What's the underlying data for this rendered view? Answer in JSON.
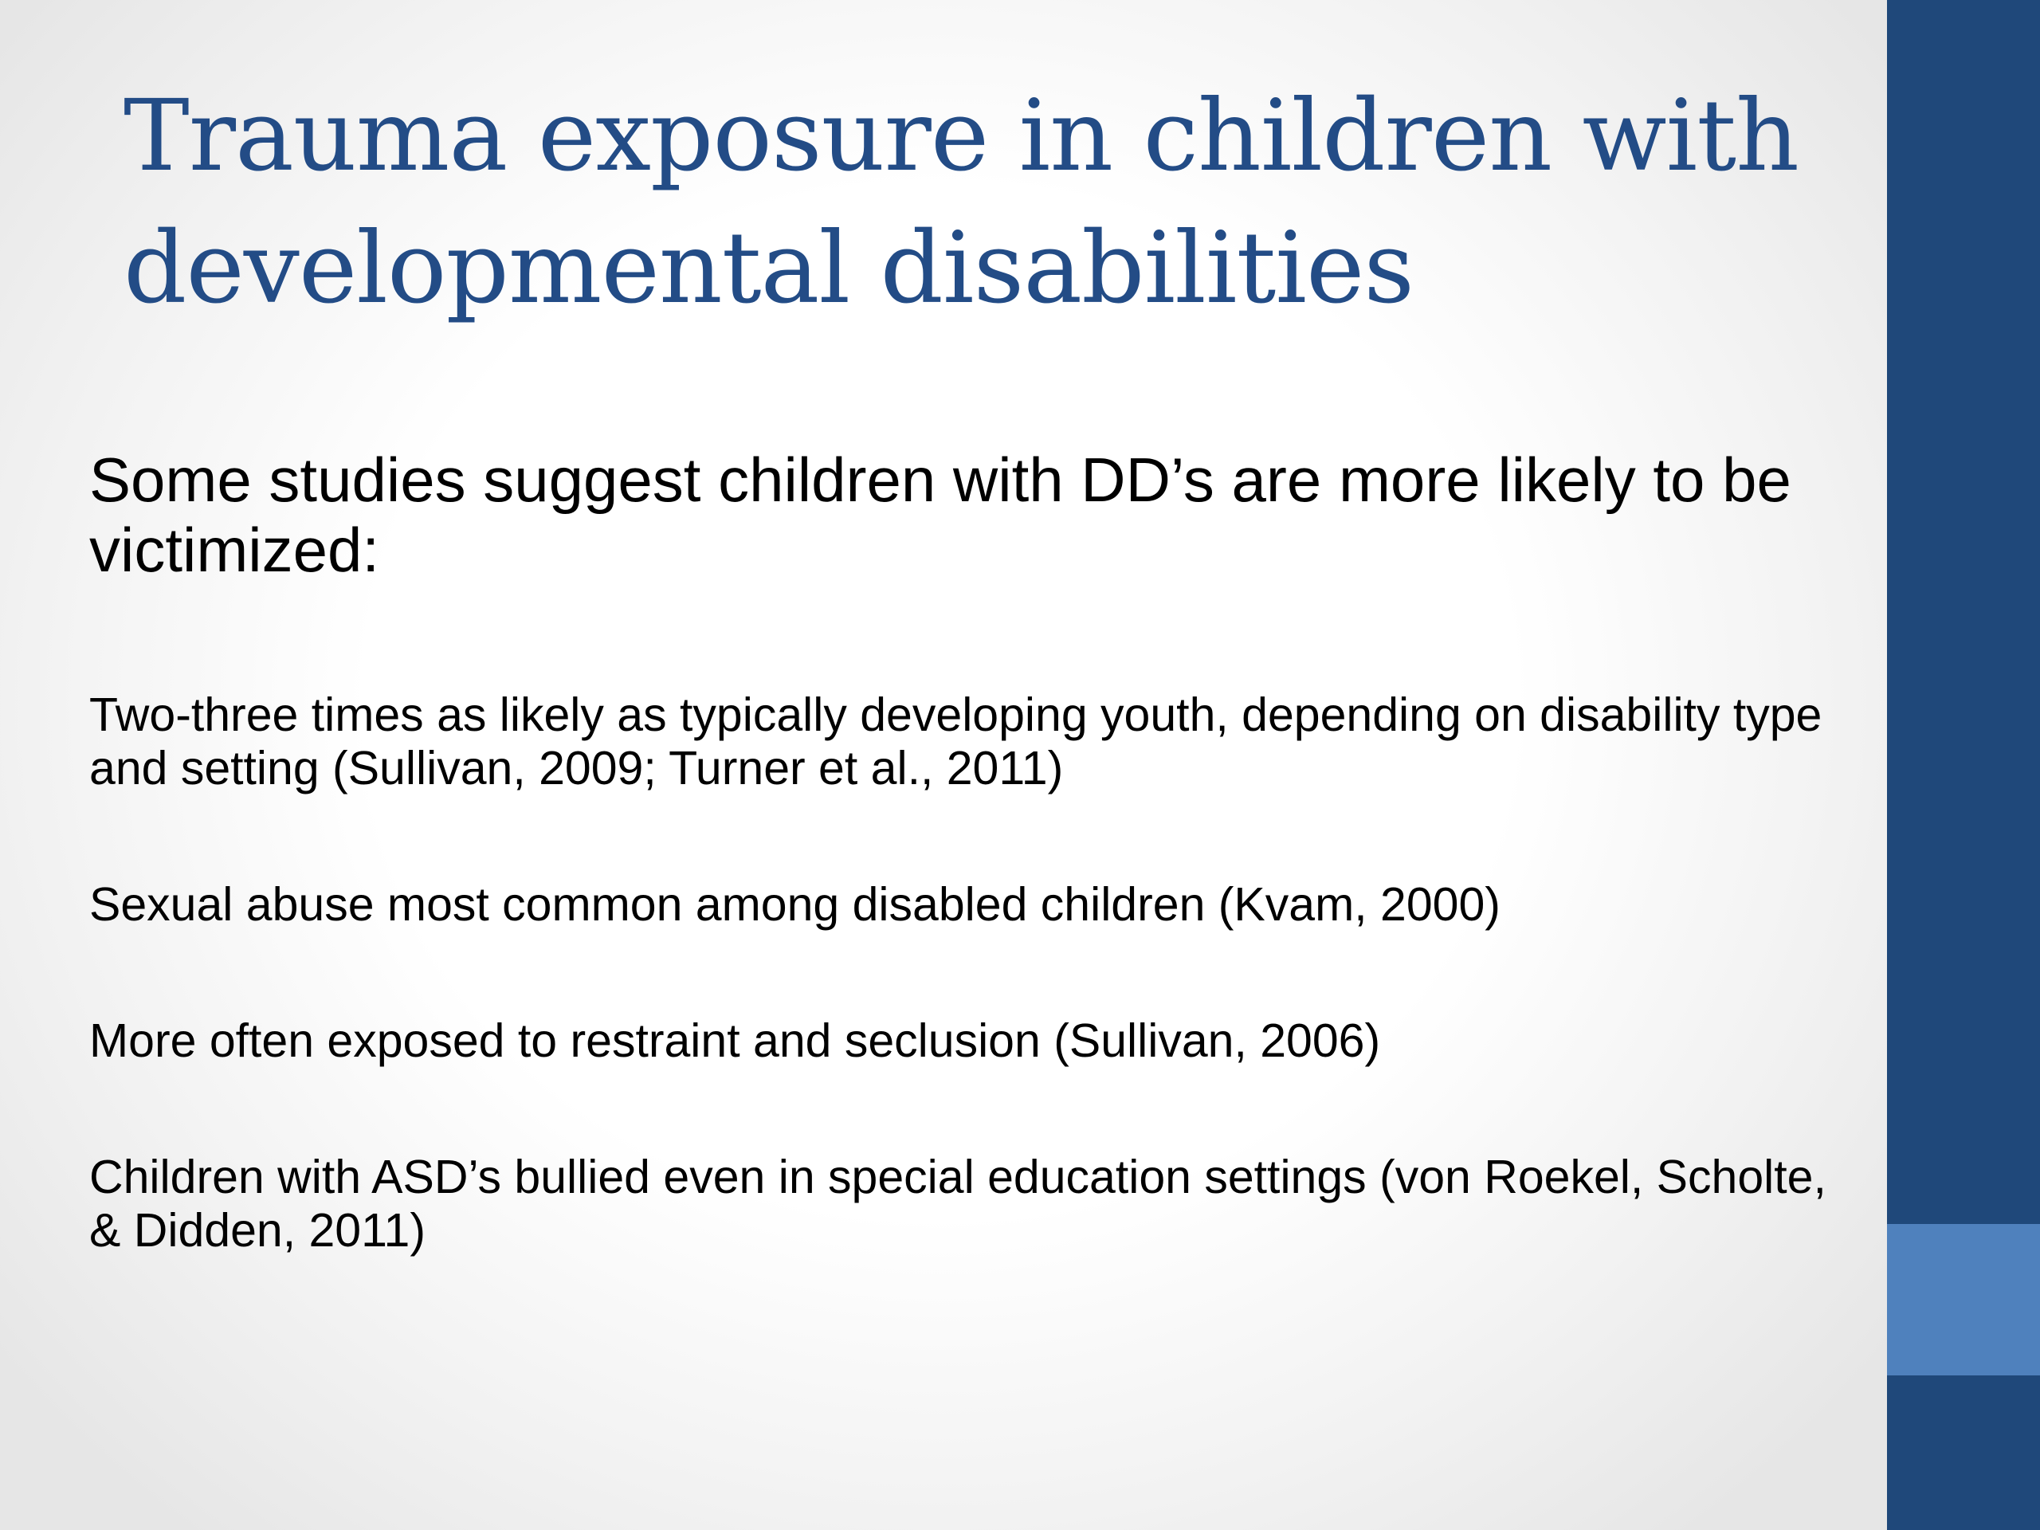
{
  "slide": {
    "title": "Trauma exposure in children with developmental disabilities",
    "lead": "Some studies suggest children with DD’s are more likely to be victimized:",
    "points": [
      "Two-three times as likely as typically developing youth, depending on disability type and setting (Sullivan, 2009; Turner et al., 2011)",
      "Sexual abuse most common among disabled children (Kvam, 2000)",
      "More often exposed to restraint and seclusion (Sullivan, 2006)",
      "Children with ASD’s bullied even in special education settings (von Roekel, Scholte, & Didden, 2011)"
    ]
  },
  "colors": {
    "title": "#234c86",
    "side_bar": "#1f487a",
    "side_accent": "#4f81bd",
    "body_text": "#000000"
  }
}
